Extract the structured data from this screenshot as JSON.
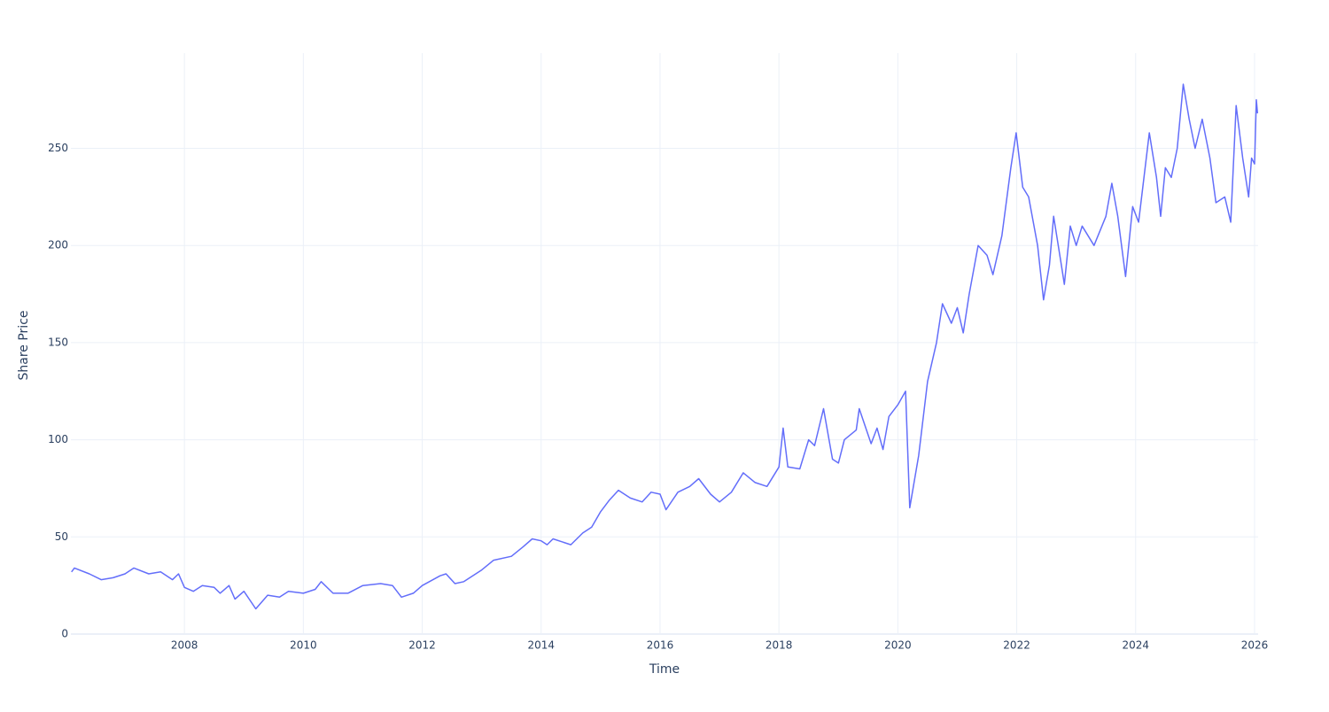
{
  "chart_data": {
    "type": "line",
    "x_label": "Time",
    "y_label": "Share Price",
    "color": "#636efa",
    "grid": true,
    "xlim": [
      2006.09,
      2026.06
    ],
    "xticks": [
      2008,
      2010,
      2012,
      2014,
      2016,
      2018,
      2020,
      2022,
      2024,
      2026
    ],
    "ylim": [
      0,
      299
    ],
    "yticks": [
      0,
      50,
      100,
      150,
      200,
      250
    ],
    "x": [
      2006.1,
      2006.15,
      2006.4,
      2006.6,
      2006.8,
      2007.0,
      2007.15,
      2007.4,
      2007.6,
      2007.8,
      2007.9,
      2008.0,
      2008.15,
      2008.3,
      2008.5,
      2008.6,
      2008.75,
      2008.85,
      2009.0,
      2009.2,
      2009.4,
      2009.6,
      2009.75,
      2010.0,
      2010.2,
      2010.3,
      2010.5,
      2010.75,
      2011.0,
      2011.3,
      2011.5,
      2011.65,
      2011.85,
      2012.0,
      2012.3,
      2012.4,
      2012.55,
      2012.7,
      2013.0,
      2013.2,
      2013.5,
      2013.7,
      2013.85,
      2014.0,
      2014.1,
      2014.2,
      2014.5,
      2014.7,
      2014.85,
      2015.0,
      2015.15,
      2015.3,
      2015.5,
      2015.7,
      2015.85,
      2016.0,
      2016.1,
      2016.3,
      2016.5,
      2016.65,
      2016.85,
      2017.0,
      2017.2,
      2017.4,
      2017.6,
      2017.8,
      2018.0,
      2018.07,
      2018.15,
      2018.35,
      2018.5,
      2018.6,
      2018.75,
      2018.9,
      2019.0,
      2019.1,
      2019.3,
      2019.35,
      2019.55,
      2019.65,
      2019.75,
      2019.85,
      2020.0,
      2020.13,
      2020.2,
      2020.35,
      2020.5,
      2020.65,
      2020.75,
      2020.9,
      2021.0,
      2021.1,
      2021.2,
      2021.35,
      2021.5,
      2021.6,
      2021.75,
      2021.9,
      2021.99,
      2022.1,
      2022.2,
      2022.35,
      2022.45,
      2022.55,
      2022.62,
      2022.75,
      2022.8,
      2022.9,
      2023.0,
      2023.1,
      2023.3,
      2023.5,
      2023.6,
      2023.7,
      2023.83,
      2023.95,
      2024.05,
      2024.23,
      2024.35,
      2024.42,
      2024.5,
      2024.6,
      2024.7,
      2024.8,
      2024.9,
      2025.0,
      2025.12,
      2025.25,
      2025.35,
      2025.5,
      2025.6,
      2025.69,
      2025.8,
      2025.9,
      2025.95,
      2026.0,
      2026.03,
      2026.05
    ],
    "values": [
      32,
      34,
      31,
      28,
      29,
      31,
      34,
      31,
      32,
      28,
      31,
      24,
      22,
      25,
      24,
      21,
      25,
      18,
      22,
      13,
      20,
      19,
      22,
      21,
      23,
      27,
      21,
      21,
      25,
      26,
      25,
      19,
      21,
      25,
      30,
      31,
      26,
      27,
      33,
      38,
      40,
      45,
      49,
      48,
      46,
      49,
      46,
      52,
      55,
      63,
      69,
      74,
      70,
      68,
      73,
      72,
      64,
      73,
      76,
      80,
      72,
      68,
      73,
      83,
      78,
      76,
      86,
      106,
      86,
      85,
      100,
      97,
      116,
      90,
      88,
      100,
      105,
      116,
      98,
      106,
      95,
      112,
      118,
      125,
      65,
      92,
      130,
      150,
      170,
      160,
      168,
      155,
      175,
      200,
      195,
      185,
      205,
      240,
      258,
      230,
      225,
      200,
      172,
      190,
      215,
      190,
      180,
      210,
      200,
      210,
      200,
      215,
      232,
      215,
      184,
      220,
      212,
      258,
      235,
      215,
      240,
      235,
      250,
      283,
      265,
      250,
      265,
      245,
      222,
      225,
      212,
      272,
      245,
      225,
      245,
      242,
      275,
      268
    ]
  }
}
